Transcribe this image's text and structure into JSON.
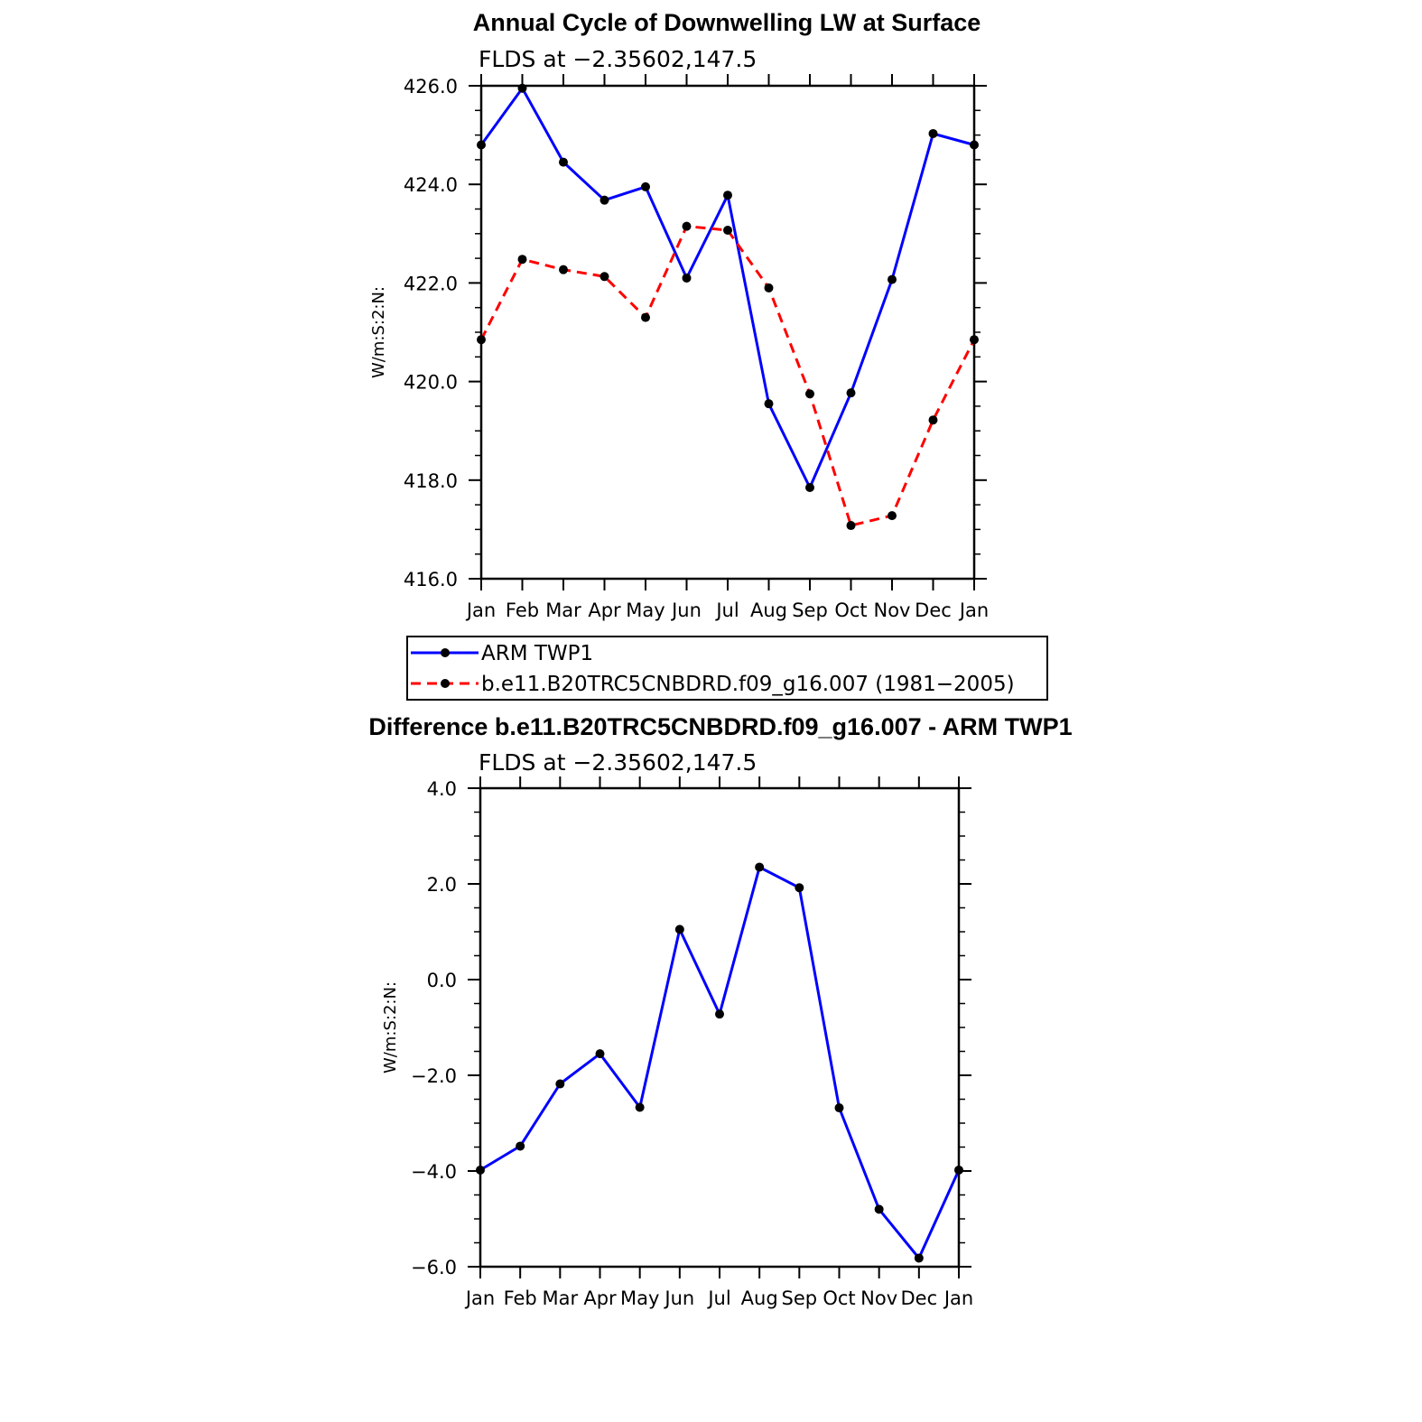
{
  "figure": {
    "panel1": {
      "title": "Annual Cycle of Downwelling LW at Surface",
      "subtitle": "FLDS at −2.35602,147.5"
    },
    "panel2": {
      "title": "Difference b.e11.B20TRC5CNBDRD.f09_g16.007 - ARM TWP1",
      "subtitle": "FLDS at −2.35602,147.5"
    },
    "legend": {
      "entries": [
        "ARM  TWP1",
        "b.e11.B20TRC5CNBDRD.f09_g16.007 (1981−2005)"
      ]
    }
  },
  "chart_data": [
    {
      "type": "line",
      "title": "Annual Cycle of Downwelling LW at Surface",
      "subtitle": "FLDS at −2.35602,147.5",
      "ylabel": "W/m:S:2:N:",
      "xlabel": "",
      "categories": [
        "Jan",
        "Feb",
        "Mar",
        "Apr",
        "May",
        "Jun",
        "Jul",
        "Aug",
        "Sep",
        "Oct",
        "Nov",
        "Dec",
        "Jan"
      ],
      "ylim": [
        416.0,
        426.0
      ],
      "yticks": [
        416.0,
        418.0,
        420.0,
        422.0,
        424.0,
        426.0
      ],
      "ytick_labels": [
        "416.0",
        "418.0",
        "420.0",
        "422.0",
        "424.0",
        "426.0"
      ],
      "y_minor_step": 0.5,
      "grid": false,
      "legend_position": "bottom",
      "series": [
        {
          "name": "ARM  TWP1",
          "color": "#0000ff",
          "dash": "solid",
          "values": [
            424.8,
            425.95,
            424.45,
            423.68,
            423.95,
            422.1,
            423.78,
            419.55,
            417.85,
            419.77,
            422.07,
            425.03,
            424.8
          ]
        },
        {
          "name": "b.e11.B20TRC5CNBDRD.f09_g16.007 (1981−2005)",
          "color": "#ff0000",
          "dash": "dashed",
          "values": [
            420.85,
            422.48,
            422.27,
            422.13,
            421.3,
            423.15,
            423.07,
            421.9,
            419.75,
            417.08,
            417.28,
            419.22,
            420.85
          ]
        }
      ]
    },
    {
      "type": "line",
      "title": "Difference b.e11.B20TRC5CNBDRD.f09_g16.007 - ARM TWP1",
      "subtitle": "FLDS at −2.35602,147.5",
      "ylabel": "W/m:S:2:N:",
      "xlabel": "",
      "categories": [
        "Jan",
        "Feb",
        "Mar",
        "Apr",
        "May",
        "Jun",
        "Jul",
        "Aug",
        "Sep",
        "Oct",
        "Nov",
        "Dec",
        "Jan"
      ],
      "ylim": [
        -6.0,
        4.0
      ],
      "yticks": [
        -6.0,
        -4.0,
        -2.0,
        0.0,
        2.0,
        4.0
      ],
      "ytick_labels": [
        "−6.0",
        "−4.0",
        "−2.0",
        "0.0",
        "2.0",
        "4.0"
      ],
      "y_minor_step": 0.5,
      "grid": false,
      "series": [
        {
          "color": "#0000ff",
          "dash": "solid",
          "values": [
            -3.98,
            -3.48,
            -2.18,
            -1.55,
            -2.67,
            1.05,
            -0.72,
            2.35,
            1.92,
            -2.68,
            -4.8,
            -5.82,
            -3.98
          ]
        }
      ]
    }
  ]
}
